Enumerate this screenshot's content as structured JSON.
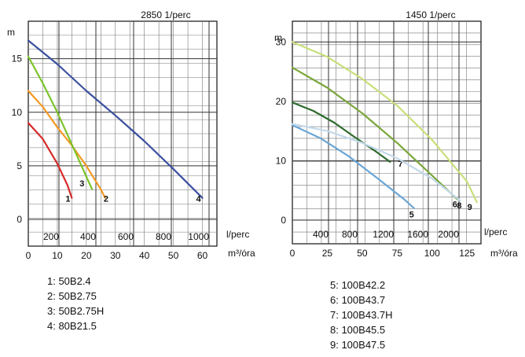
{
  "chart_data": [
    {
      "type": "line",
      "speed_label": "2850 1/perc",
      "y_label": "m",
      "x_top_label": "l/perc",
      "x_bottom_label": "m³/óra",
      "y_ticks": [
        0,
        5,
        10,
        15
      ],
      "x_top_ticks": [
        200,
        400,
        600,
        800,
        1000
      ],
      "x_bottom_ticks": [
        0,
        10,
        20,
        30,
        40,
        50,
        60
      ],
      "xlim": [
        0,
        65
      ],
      "ylim": [
        -2.5,
        18.5
      ],
      "grid": true,
      "series": [
        {
          "id": "1",
          "color": "#d62a2a",
          "x": [
            0,
            5,
            10,
            13.5,
            15
          ],
          "y": [
            9,
            7.5,
            5.2,
            3.2,
            2
          ]
        },
        {
          "id": "2",
          "color": "#f39a22",
          "x": [
            0,
            5,
            10,
            15,
            20,
            25,
            26.5
          ],
          "y": [
            12,
            10.5,
            8.6,
            6.9,
            5,
            2.8,
            2
          ]
        },
        {
          "id": "3",
          "color": "#7cc42a",
          "x": [
            0,
            5,
            10,
            15,
            20,
            22
          ],
          "y": [
            15.2,
            12.7,
            10,
            7,
            4,
            2.8
          ]
        },
        {
          "id": "4",
          "color": "#3a4f9e",
          "x": [
            0,
            10,
            20,
            30,
            40,
            50,
            60
          ],
          "y": [
            16.7,
            14.5,
            12,
            9.7,
            7.3,
            4.7,
            2
          ]
        }
      ]
    },
    {
      "type": "line",
      "speed_label": "1450 1/perc",
      "y_label": "m",
      "x_top_label": "l/perc",
      "x_bottom_label": "m³/óra",
      "y_ticks": [
        0,
        10,
        20,
        30
      ],
      "x_top_ticks": [
        400,
        800,
        1200,
        1600,
        2000
      ],
      "x_bottom_ticks": [
        0,
        25,
        50,
        75,
        100,
        125
      ],
      "xlim": [
        0,
        135
      ],
      "ylim": [
        -4,
        33.5
      ],
      "grid": true,
      "series": [
        {
          "id": "5",
          "color": "#6aa6d6",
          "x": [
            0,
            20,
            40,
            60,
            80,
            87
          ],
          "y": [
            16,
            13.8,
            10.8,
            7.2,
            3.5,
            2
          ]
        },
        {
          "id": "6",
          "color": "#7aa63a",
          "x": [
            0,
            25,
            50,
            75,
            100,
            118
          ],
          "y": [
            25.7,
            22.3,
            18,
            13,
            7.5,
            3.5
          ]
        },
        {
          "id": "7",
          "color": "#2e6b2e",
          "x": [
            0,
            15,
            30,
            45,
            60,
            70
          ],
          "y": [
            19.8,
            18.4,
            16.4,
            13.9,
            11.5,
            9.8
          ]
        },
        {
          "id": "8",
          "color": "#c3d9eb",
          "x": [
            0,
            25,
            50,
            75,
            100,
            120
          ],
          "y": [
            16.2,
            15,
            13,
            10.4,
            7,
            3.3
          ]
        },
        {
          "id": "9",
          "color": "#c8df7a",
          "x": [
            0,
            25,
            50,
            75,
            100,
            125,
            132
          ],
          "y": [
            30,
            27.5,
            23.8,
            19.3,
            13.5,
            6.5,
            3
          ]
        }
      ]
    }
  ],
  "legend_left": [
    {
      "text": "1: 50B2.4"
    },
    {
      "text": "2: 50B2.75"
    },
    {
      "text": "3: 50B2.75H"
    },
    {
      "text": "4: 80B21.5"
    }
  ],
  "legend_right": [
    {
      "text": "5: 100B42.2"
    },
    {
      "text": "6: 100B43.7"
    },
    {
      "text": "7: 100B43.7H"
    },
    {
      "text": "8: 100B45.5"
    },
    {
      "text": "9: 100B47.5"
    }
  ]
}
